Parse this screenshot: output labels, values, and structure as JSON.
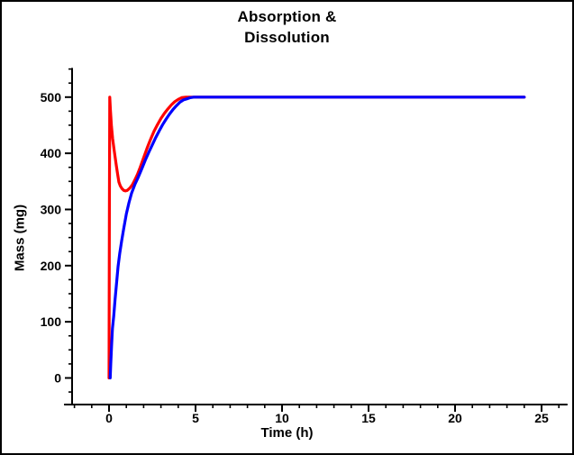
{
  "window": {
    "background_color": "#ffffff",
    "border_color": "#000000"
  },
  "chart_data": {
    "type": "line",
    "title_lines": [
      "Absorption &",
      "Dissolution"
    ],
    "xlabel": "Time (h)",
    "ylabel": "Mass (mg)",
    "x_ticks": [
      0,
      5,
      10,
      15,
      20,
      25
    ],
    "x_minor_step": 1,
    "x_axis_range": [
      -2.6,
      26.5
    ],
    "y_ticks": [
      0,
      100,
      200,
      300,
      400,
      500
    ],
    "y_minor_step": 25,
    "y_axis_range": [
      -48,
      552
    ],
    "grid": false,
    "legend": "none",
    "axis_color": "#000000",
    "series": [
      {
        "name": "red-curve",
        "color": "#ff0000",
        "points": [
          [
            0,
            0
          ],
          [
            0.02,
            300
          ],
          [
            0.04,
            500
          ],
          [
            0.08,
            478
          ],
          [
            0.14,
            448
          ],
          [
            0.21,
            426
          ],
          [
            0.3,
            404
          ],
          [
            0.42,
            378
          ],
          [
            0.5,
            362
          ],
          [
            0.57,
            349
          ],
          [
            0.65,
            342
          ],
          [
            0.75,
            337
          ],
          [
            0.85,
            334
          ],
          [
            0.95,
            333
          ],
          [
            1.05,
            334
          ],
          [
            1.2,
            338
          ],
          [
            1.35,
            344
          ],
          [
            1.5,
            353
          ],
          [
            1.65,
            363
          ],
          [
            1.8,
            375
          ],
          [
            2.0,
            392
          ],
          [
            2.2,
            409
          ],
          [
            2.4,
            425
          ],
          [
            2.6,
            439
          ],
          [
            2.8,
            451
          ],
          [
            3.0,
            462
          ],
          [
            3.2,
            471
          ],
          [
            3.4,
            479
          ],
          [
            3.6,
            486
          ],
          [
            3.8,
            492
          ],
          [
            4.0,
            496
          ],
          [
            4.2,
            499
          ],
          [
            4.45,
            500
          ],
          [
            5,
            500
          ],
          [
            24,
            500
          ]
        ]
      },
      {
        "name": "blue-curve",
        "color": "#0000ff",
        "points": [
          [
            0.07,
            0
          ],
          [
            0.1,
            25
          ],
          [
            0.15,
            60
          ],
          [
            0.2,
            88
          ],
          [
            0.27,
            110
          ],
          [
            0.35,
            140
          ],
          [
            0.43,
            168
          ],
          [
            0.52,
            198
          ],
          [
            0.62,
            222
          ],
          [
            0.73,
            244
          ],
          [
            0.85,
            266
          ],
          [
            1.0,
            292
          ],
          [
            1.15,
            312
          ],
          [
            1.3,
            329
          ],
          [
            1.5,
            345
          ],
          [
            1.7,
            358
          ],
          [
            1.9,
            373
          ],
          [
            2.1,
            388
          ],
          [
            2.3,
            402
          ],
          [
            2.5,
            415
          ],
          [
            2.7,
            428
          ],
          [
            2.9,
            440
          ],
          [
            3.1,
            451
          ],
          [
            3.3,
            461
          ],
          [
            3.5,
            470
          ],
          [
            3.7,
            478
          ],
          [
            3.9,
            485
          ],
          [
            4.1,
            491
          ],
          [
            4.3,
            495
          ],
          [
            4.5,
            497
          ],
          [
            4.7,
            499
          ],
          [
            4.9,
            500
          ],
          [
            24,
            500
          ]
        ]
      }
    ]
  }
}
